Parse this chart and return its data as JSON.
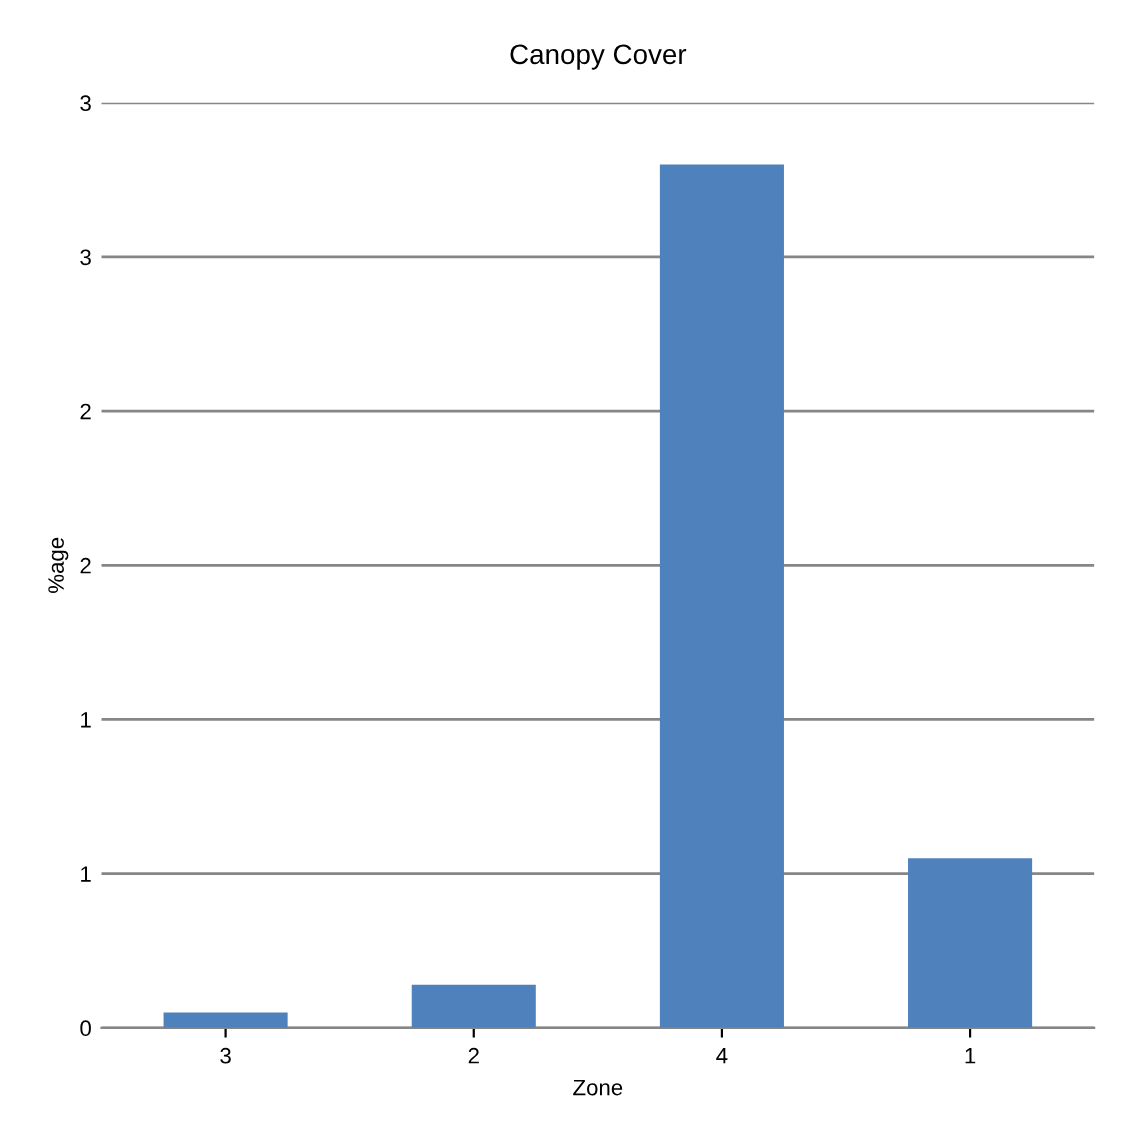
{
  "chart_data": {
    "type": "bar",
    "title": "Canopy Cover",
    "xlabel": "Zone",
    "ylabel": "%age",
    "categories": [
      "3",
      "2",
      "4",
      "1"
    ],
    "values": [
      0.05,
      0.14,
      2.8,
      0.55
    ],
    "color": "#4f81bd",
    "ylim": [
      0,
      3
    ],
    "yticks": [
      0,
      {
        "value": 0.5,
        "label": "1"
      },
      1,
      {
        "value": 1.5,
        "label": "2"
      },
      2,
      {
        "value": 2.5,
        "label": "3"
      },
      3
    ],
    "grid": "y"
  }
}
